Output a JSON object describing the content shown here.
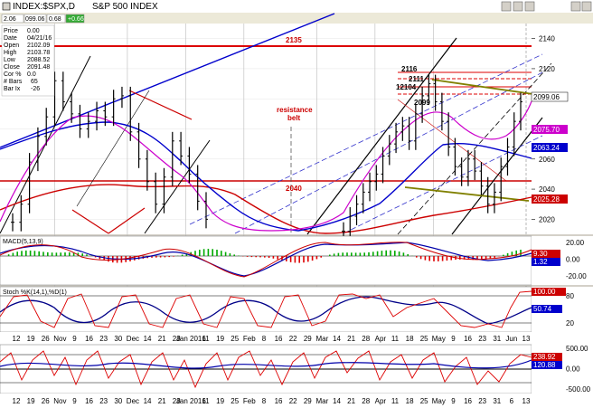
{
  "window": {
    "title": "INDEX:$SPX,D",
    "subtitle": "S&P 500 INDEX",
    "toolbar_values": [
      "2.06",
      "099.06",
      "0.68",
      "+0.66"
    ]
  },
  "readout": [
    {
      "label": "Price",
      "value": "0.00"
    },
    {
      "label": "Date",
      "value": "04/21/16"
    },
    {
      "label": "Open",
      "value": "2102.09"
    },
    {
      "label": "High",
      "value": "2103.78"
    },
    {
      "label": "Low",
      "value": "2088.52"
    },
    {
      "label": "Close",
      "value": "2091.48"
    },
    {
      "label": "Cor %",
      "value": "0.0"
    },
    {
      "label": "# Bars",
      "value": "65"
    },
    {
      "label": "Bar Ix",
      "value": "-26"
    }
  ],
  "annotations": {
    "level_2135": "2135",
    "level_2040": "2040",
    "resistance_line1": "resistance",
    "resistance_line2": "belt",
    "peak_2116": "2116",
    "peak_2111": "2111",
    "peak_12104": "12104",
    "peak_2099": "2099"
  },
  "price_tags": [
    {
      "value": "2099.06",
      "color": "#000000",
      "bg": "#ffffff"
    },
    {
      "value": "2075.70",
      "color": "#ffffff",
      "bg": "#cc00cc"
    },
    {
      "value": "2063.24",
      "color": "#ffffff",
      "bg": "#0000cc"
    },
    {
      "value": "2025.28",
      "color": "#ffffff",
      "bg": "#cc0000"
    }
  ],
  "indicators": {
    "macd": {
      "label": "MACD(5,13,9)",
      "tags": [
        {
          "value": "9.30",
          "bg": "#cc0000"
        },
        {
          "value": "1.32",
          "bg": "#0000cc"
        }
      ]
    },
    "stoch": {
      "label": "Stoch %K(14,1),%D(1)",
      "tags": [
        {
          "value": "100.00",
          "bg": "#cc0000"
        },
        {
          "value": "50.74",
          "bg": "#0000cc"
        }
      ]
    },
    "cci": {
      "tags": [
        {
          "value": "238.92",
          "bg": "#cc0000"
        },
        {
          "value": "120.88",
          "bg": "#0000cc"
        }
      ]
    }
  },
  "chart_data": {
    "type": "bar",
    "title": "S&P 500 INDEX",
    "ylim": [
      2010,
      2150
    ],
    "price_axis": [
      2020,
      2040,
      2060,
      2080,
      2100,
      2120,
      2140
    ],
    "macd_axis": [
      20.0,
      0.0,
      -20.0
    ],
    "stoch_axis": [
      80,
      20
    ],
    "cci_axis": [
      500.0,
      0.0,
      -500.0
    ],
    "date_ticks_top": [
      "12",
      "19",
      "26",
      "Nov",
      "9",
      "16",
      "23",
      "30",
      "Dec",
      "14",
      "21",
      "28",
      "Jan 2016",
      "11",
      "19",
      "25",
      "Feb",
      "8",
      "16",
      "22",
      "29",
      "Mar",
      "14",
      "21",
      "28",
      "Apr",
      "11",
      "18",
      "25",
      "May",
      "9",
      "16",
      "23",
      "31",
      "Jun",
      "13"
    ],
    "date_ticks_bottom": [
      "12",
      "19",
      "26",
      "Nov",
      "9",
      "16",
      "23",
      "30",
      "Dec",
      "14",
      "21",
      "28",
      "Jan 2016",
      "11",
      "19",
      "25",
      "Feb",
      "8",
      "16",
      "22",
      "29",
      "Mar",
      "14",
      "21",
      "28",
      "Apr",
      "11",
      "18",
      "25",
      "May",
      "9",
      "16",
      "23",
      "31",
      "6",
      "13"
    ],
    "close_visible_oct_jan": [
      2018,
      2030,
      2058,
      2075,
      2088,
      2112,
      2098,
      2090,
      2080,
      2085,
      2092,
      2088,
      2100,
      2102,
      2078,
      2060,
      2045,
      2030,
      2048,
      2072,
      2062,
      2050,
      2032,
      2020
    ],
    "close_visible_mar_may": [
      2012,
      2022,
      2030,
      2038,
      2045,
      2050,
      2062,
      2070,
      2078,
      2082,
      2072,
      2090,
      2102,
      2110,
      2098,
      2085,
      2068,
      2055,
      2048,
      2060,
      2052,
      2042,
      2030,
      2038,
      2055,
      2068,
      2085,
      2098
    ]
  }
}
